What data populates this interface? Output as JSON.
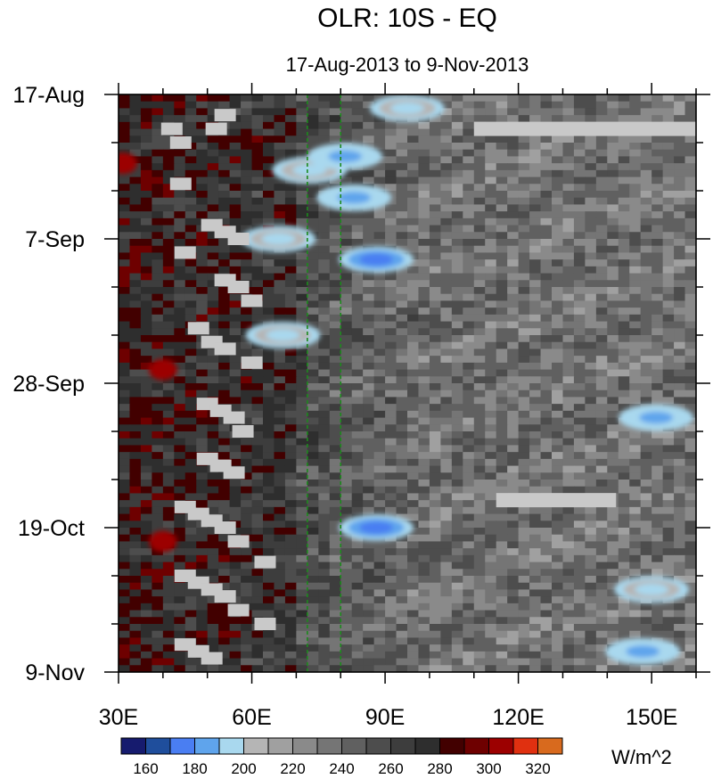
{
  "chart_data": {
    "type": "heatmap",
    "title": "OLR: 10S - EQ",
    "subtitle": "17-Aug-2013 to 9-Nov-2013",
    "x_ticks": [
      {
        "value": 30,
        "label": "30E"
      },
      {
        "value": 60,
        "label": "60E"
      },
      {
        "value": 90,
        "label": "90E"
      },
      {
        "value": 120,
        "label": "120E"
      },
      {
        "value": 150,
        "label": "150E"
      }
    ],
    "xlim": [
      30,
      160
    ],
    "y_ticks": [
      {
        "value": "2013-08-17",
        "label": "17-Aug"
      },
      {
        "value": "2013-09-07",
        "label": "7-Sep"
      },
      {
        "value": "2013-09-28",
        "label": "28-Sep"
      },
      {
        "value": "2013-10-19",
        "label": "19-Oct"
      },
      {
        "value": "2013-11-09",
        "label": "9-Nov"
      }
    ],
    "ylim": [
      "2013-08-17",
      "2013-11-09"
    ],
    "reference_lines_lon": [
      72.5,
      80
    ],
    "colorbar": {
      "units": "W/m^2",
      "levels": [
        160,
        170,
        180,
        190,
        200,
        210,
        220,
        230,
        240,
        250,
        260,
        270,
        280,
        290,
        300,
        310,
        320
      ],
      "labels": [
        "160",
        "180",
        "200",
        "220",
        "240",
        "260",
        "280",
        "300",
        "320"
      ],
      "colors": [
        "#161b6e",
        "#1f4e9c",
        "#4a7ef2",
        "#5fa4ec",
        "#a9d8ee",
        "#b5b5b5",
        "#a0a0a0",
        "#8a8a8a",
        "#757575",
        "#606060",
        "#4d4d4d",
        "#3d3d3d",
        "#2e2e2e",
        "#420000",
        "#6e0000",
        "#9c0000",
        "#e03010",
        "#d86a1e"
      ]
    },
    "low_olr_events": [
      {
        "lon": 73,
        "date": "2013-08-28",
        "value": 190
      },
      {
        "lon": 81,
        "date": "2013-08-26",
        "value": 185
      },
      {
        "lon": 83,
        "date": "2013-09-01",
        "value": 180
      },
      {
        "lon": 88,
        "date": "2013-09-10",
        "value": 170
      },
      {
        "lon": 66,
        "date": "2013-09-07",
        "value": 190
      },
      {
        "lon": 67,
        "date": "2013-09-21",
        "value": 190
      },
      {
        "lon": 95,
        "date": "2013-08-19",
        "value": 190
      },
      {
        "lon": 88,
        "date": "2013-10-19",
        "value": 170
      },
      {
        "lon": 151,
        "date": "2013-10-03",
        "value": 180
      },
      {
        "lon": 150,
        "date": "2013-10-28",
        "value": 190
      },
      {
        "lon": 148,
        "date": "2013-11-06",
        "value": 180
      }
    ],
    "high_olr_events": [
      {
        "lon": 31,
        "date": "2013-08-27",
        "value": 300
      },
      {
        "lon": 40,
        "date": "2013-09-26",
        "value": 300
      },
      {
        "lon": 40,
        "date": "2013-10-21",
        "value": 300
      }
    ],
    "grid": false,
    "legend": "bottom"
  }
}
